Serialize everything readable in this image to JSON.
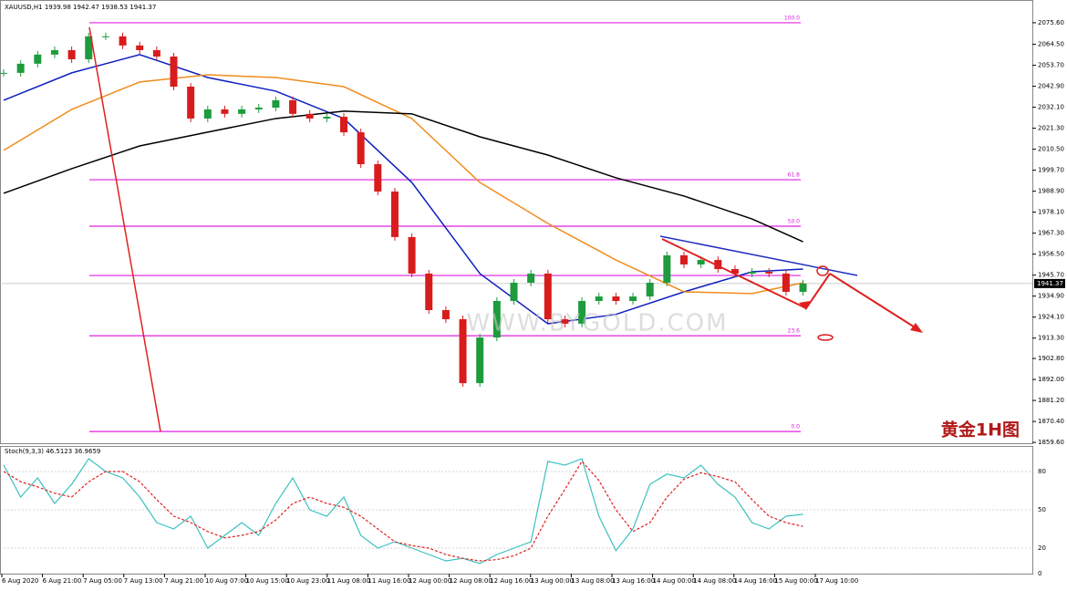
{
  "chart_data": {
    "type": "candlestick",
    "title": "XAUUSD,H1  1939.98 1942.47 1938.53 1941.37",
    "annotation": "黄金1H图",
    "watermark": "WWW.BYGOLD.COM",
    "last_price": {
      "value": 1941.37,
      "label": "1941.37"
    },
    "ylim": [
      1858.7,
      2087.3
    ],
    "yticks": [
      {
        "value": 2075.6,
        "label": "2075.60"
      },
      {
        "value": 2064.5,
        "label": "2064.50"
      },
      {
        "value": 2053.7,
        "label": "2053.70"
      },
      {
        "value": 2042.9,
        "label": "2042.90"
      },
      {
        "value": 2032.1,
        "label": "2032.10"
      },
      {
        "value": 2021.3,
        "label": "2021.30"
      },
      {
        "value": 2010.5,
        "label": "2010.50"
      },
      {
        "value": 1999.7,
        "label": "1999.70"
      },
      {
        "value": 1988.9,
        "label": "1988.90"
      },
      {
        "value": 1978.1,
        "label": "1978.10"
      },
      {
        "value": 1967.3,
        "label": "1967.30"
      },
      {
        "value": 1956.5,
        "label": "1956.50"
      },
      {
        "value": 1945.7,
        "label": "1945.70"
      },
      {
        "value": 1934.9,
        "label": "1934.90"
      },
      {
        "value": 1924.1,
        "label": "1924.10"
      },
      {
        "value": 1913.3,
        "label": "1913.30"
      },
      {
        "value": 1902.8,
        "label": "1902.80"
      },
      {
        "value": 1892,
        "label": "1892.00"
      },
      {
        "value": 1881.2,
        "label": "1881.20"
      },
      {
        "value": 1870.4,
        "label": "1870.40"
      },
      {
        "value": 1859.6,
        "label": "1859.60"
      }
    ],
    "time_labels": [
      "6 Aug 2020",
      "6 Aug 21:00",
      "7 Aug 05:00",
      "7 Aug 13:00",
      "7 Aug 21:00",
      "10 Aug 07:00",
      "10 Aug 15:00",
      "10 Aug 23:00",
      "11 Aug 08:00",
      "11 Aug 16:00",
      "12 Aug 00:00",
      "12 Aug 08:00",
      "12 Aug 16:00",
      "13 Aug 00:00",
      "13 Aug 08:00",
      "13 Aug 16:00",
      "14 Aug 00:00",
      "14 Aug 08:00",
      "14 Aug 16:00",
      "15 Aug 00:00",
      "17 Aug 10:00"
    ],
    "close": [
      2049.8,
      2054.5,
      2059.2,
      2061.5,
      2056.8,
      2068.6,
      2068.6,
      2063.9,
      2061.5,
      2058.2,
      2042.7,
      2026.3,
      2031.0,
      2028.7,
      2031.0,
      2031.9,
      2035.7,
      2028.7,
      2026.3,
      2027.2,
      2019.2,
      2002.8,
      1988.7,
      1965.3,
      1946.5,
      1927.7,
      1923.0,
      1890.1,
      1913.6,
      1932.4,
      1941.8,
      1946.5,
      1923.0,
      1920.7,
      1932.4,
      1934.7,
      1932.4,
      1934.7,
      1941.8,
      1955.9,
      1951.2,
      1953.5,
      1948.8,
      1946.5,
      1947.4,
      1946.5,
      1937.1,
      1941.4
    ],
    "up_color": "#1e9b3c",
    "down_color": "#d81c1c",
    "moving_averages": {
      "x": [
        0,
        4,
        8,
        12,
        16,
        20,
        24,
        28,
        32,
        36,
        40,
        44,
        47
      ],
      "series": [
        {
          "color": "#1020c0",
          "values": [
            2035.7,
            2049.8,
            2059.2,
            2047.4,
            2040.4,
            2026.3,
            1993.4,
            1946.5,
            1920.7,
            1925.5,
            1937.1,
            1947.4,
            1948.8
          ]
        },
        {
          "color": "#f08c1e",
          "values": [
            2009.9,
            2031.0,
            2045.1,
            2048.8,
            2047.4,
            2042.7,
            2026.3,
            1993.4,
            1972.3,
            1953.5,
            1937.1,
            1936.2,
            1941.8
          ]
        },
        {
          "color": "#000000",
          "values": [
            1987.8,
            2000.5,
            2012.2,
            2019.3,
            2026.3,
            2030.1,
            2028.7,
            2016.9,
            2007.5,
            1995.8,
            1986.4,
            1974.6,
            1962.9
          ]
        }
      ]
    },
    "fibonacci": {
      "color": "#e020e0",
      "levels": [
        "100.0",
        "61.8",
        "50.0",
        null,
        "23.6",
        "0.0"
      ],
      "prices": [
        2075.6,
        1994.8,
        1970.9,
        1945.5,
        1914.5,
        1865.2
      ]
    },
    "stochastic": {
      "title": "Stoch(9,3,3) 46.5123 36.9659",
      "ylim": [
        0,
        100
      ],
      "yticks": [
        0,
        20,
        50,
        80
      ],
      "main": {
        "color": "#3cc0c0",
        "values": [
          85,
          60,
          75,
          55,
          70,
          90,
          80,
          75,
          60,
          40,
          35,
          45,
          20,
          30,
          40,
          30,
          55,
          75,
          50,
          45,
          60,
          30,
          20,
          25,
          20,
          15,
          10,
          12,
          8,
          15,
          20,
          25,
          88,
          85,
          90,
          45,
          18,
          35,
          70,
          78,
          75,
          85,
          70,
          60,
          40,
          35,
          45,
          46.5
        ]
      },
      "signal": {
        "color": "#e02020",
        "values": [
          80,
          72,
          68,
          63,
          60,
          72,
          80,
          80,
          72,
          58,
          45,
          40,
          33,
          28,
          30,
          33,
          42,
          55,
          60,
          55,
          52,
          45,
          35,
          25,
          22,
          20,
          15,
          12,
          10,
          11,
          14,
          20,
          45,
          66,
          88,
          73,
          50,
          33,
          40,
          60,
          74,
          79,
          76,
          72,
          58,
          45,
          40,
          37
        ]
      }
    }
  }
}
